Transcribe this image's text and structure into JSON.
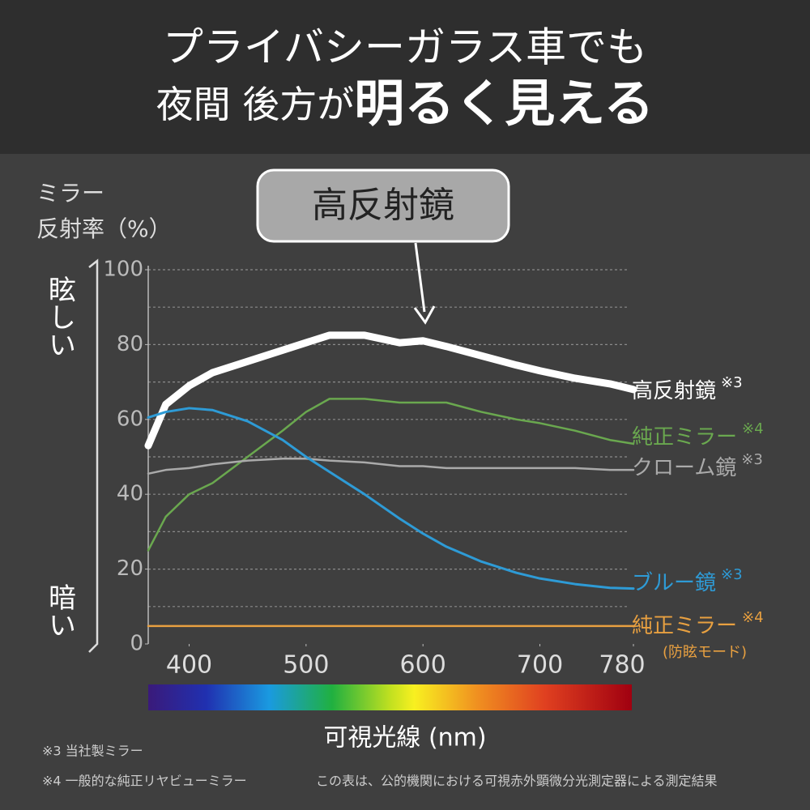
{
  "title_line1": "プライバシーガラス車でも",
  "title_line2_small": "夜間 後方が",
  "title_line2_large": "明るく見える",
  "callout": "高反射鏡",
  "glare_label": "眩しい",
  "dark_label": "暗い",
  "footnotes": [
    "※3 当社製ミラー",
    "※4 一般的な純正リヤビューミラー",
    "この表は、公的機関における可視赤外顕微分光測定器による測定結果"
  ],
  "chart_data": {
    "type": "line",
    "y_title": [
      "ミラー",
      "反射率（%）"
    ],
    "x_title": "可視光線 (nm)",
    "x": [
      365,
      380,
      400,
      420,
      450,
      480,
      500,
      520,
      550,
      580,
      600,
      620,
      650,
      680,
      700,
      730,
      760,
      780
    ],
    "xlim": [
      365,
      780
    ],
    "xticks": [
      400,
      500,
      600,
      700,
      780
    ],
    "ylim": [
      0,
      100
    ],
    "yticks": [
      0,
      20,
      40,
      60,
      80,
      100
    ],
    "ygrid": [
      10,
      20,
      30,
      40,
      50,
      60,
      70,
      80,
      90,
      100
    ],
    "grid": true,
    "series": [
      {
        "name": "高反射鏡",
        "note": "※3",
        "color": "#ffffff",
        "width": 9,
        "values": [
          53,
          64,
          69,
          72.5,
          75.5,
          78.5,
          80.5,
          82.5,
          82.5,
          80.5,
          81,
          79.5,
          77,
          74.5,
          73,
          71,
          69.5,
          68
        ]
      },
      {
        "name": "純正ミラー",
        "note": "※4",
        "color": "#6aa84f",
        "width": 2.5,
        "values": [
          25,
          34,
          40,
          43,
          50,
          57,
          62,
          65.5,
          65.5,
          64.5,
          64.5,
          64.5,
          62,
          60,
          59,
          57,
          54.5,
          53.5
        ]
      },
      {
        "name": "クローム鏡",
        "note": "※3",
        "color": "#aaaaaa",
        "width": 2.5,
        "values": [
          45.5,
          46.5,
          47,
          48,
          49,
          49.5,
          49.5,
          49,
          48.5,
          47.5,
          47.5,
          47,
          47,
          47,
          47,
          47,
          46.5,
          46.5
        ]
      },
      {
        "name": "ブルー鏡",
        "note": "※3",
        "color": "#2e9bd6",
        "width": 3,
        "values": [
          60.5,
          62,
          63,
          62.5,
          59.5,
          54.5,
          50,
          46,
          40,
          33.5,
          29.5,
          26,
          22,
          19,
          17.5,
          16,
          15,
          14.8
        ]
      },
      {
        "name": "純正ミラー",
        "note": "※4",
        "sub": "(防眩モード)",
        "color": "#e8a040",
        "width": 2.5,
        "values": [
          4.8,
          4.8,
          4.8,
          4.8,
          4.8,
          4.8,
          4.8,
          4.8,
          4.8,
          4.8,
          4.8,
          4.8,
          4.8,
          4.8,
          4.8,
          4.8,
          4.8,
          4.8
        ]
      }
    ]
  }
}
